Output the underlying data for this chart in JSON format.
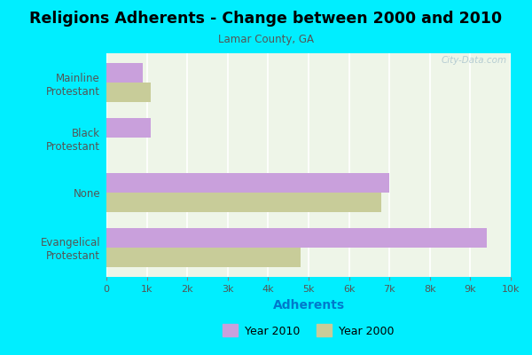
{
  "title": "Religions Adherents - Change between 2000 and 2010",
  "subtitle": "Lamar County, GA",
  "xlabel": "Adherents",
  "categories": [
    "Evangelical\nProtestant",
    "None",
    "Black\nProtestant",
    "Mainline\nProtestant"
  ],
  "values_2010": [
    9400,
    7000,
    1100,
    900
  ],
  "values_2000": [
    4800,
    6800,
    0,
    1100
  ],
  "color_2010": "#c9a0dc",
  "color_2000": "#c8cc99",
  "background_outer": "#00eeff",
  "background_inner": "#eef5e8",
  "xlim": [
    0,
    10000
  ],
  "xticks": [
    0,
    1000,
    2000,
    3000,
    4000,
    5000,
    6000,
    7000,
    8000,
    9000,
    10000
  ],
  "xticklabels": [
    "0",
    "1k",
    "2k",
    "3k",
    "4k",
    "5k",
    "6k",
    "7k",
    "8k",
    "9k",
    "10k"
  ],
  "legend_label_2010": "Year 2010",
  "legend_label_2000": "Year 2000",
  "bar_height": 0.35,
  "watermark": "City-Data.com"
}
